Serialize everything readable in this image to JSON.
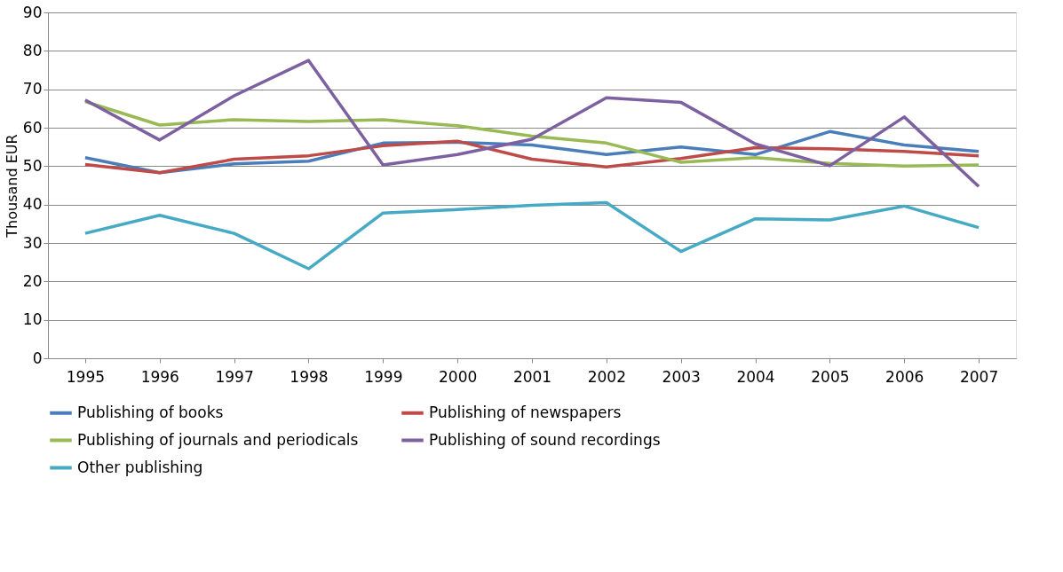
{
  "chart_data": {
    "type": "line",
    "ylabel": "Thousand EUR",
    "categories": [
      "1995",
      "1996",
      "1997",
      "1998",
      "1999",
      "2000",
      "2001",
      "2002",
      "2003",
      "2004",
      "2005",
      "2006",
      "2007"
    ],
    "ylim": [
      0,
      90
    ],
    "yticks": [
      0,
      10,
      20,
      30,
      40,
      50,
      60,
      70,
      80,
      90
    ],
    "grid": "y",
    "legend": "bottom",
    "marker": "none",
    "line_style": "solid",
    "series": [
      {
        "name": "Publishing of books",
        "color": "#4a7ebb",
        "values": [
          52.2,
          48.3,
          50.6,
          51.3,
          56.0,
          56.2,
          55.5,
          53.0,
          55.0,
          53.0,
          59.0,
          55.5,
          53.8
        ]
      },
      {
        "name": "Publishing of newspapers",
        "color": "#be4b48",
        "values": [
          50.4,
          48.3,
          51.8,
          52.7,
          55.3,
          56.5,
          51.8,
          49.8,
          52.0,
          54.8,
          54.5,
          53.8,
          52.7
        ]
      },
      {
        "name": "Publishing of journals and periodicals",
        "color": "#98b954",
        "values": [
          66.8,
          60.7,
          62.1,
          61.6,
          62.1,
          60.5,
          57.8,
          56.0,
          51.0,
          52.2,
          50.7,
          50.0,
          50.3
        ]
      },
      {
        "name": "Publishing of sound recordings",
        "color": "#7d60a0",
        "values": [
          67.2,
          56.8,
          68.3,
          77.5,
          50.3,
          53.0,
          57.0,
          67.8,
          66.6,
          55.8,
          50.1,
          62.8,
          44.7
        ]
      },
      {
        "name": "Other publishing",
        "color": "#46aac5",
        "values": [
          32.5,
          37.2,
          32.5,
          23.3,
          37.8,
          38.7,
          39.8,
          40.5,
          27.8,
          36.3,
          36.0,
          39.6,
          34.0
        ]
      }
    ]
  }
}
